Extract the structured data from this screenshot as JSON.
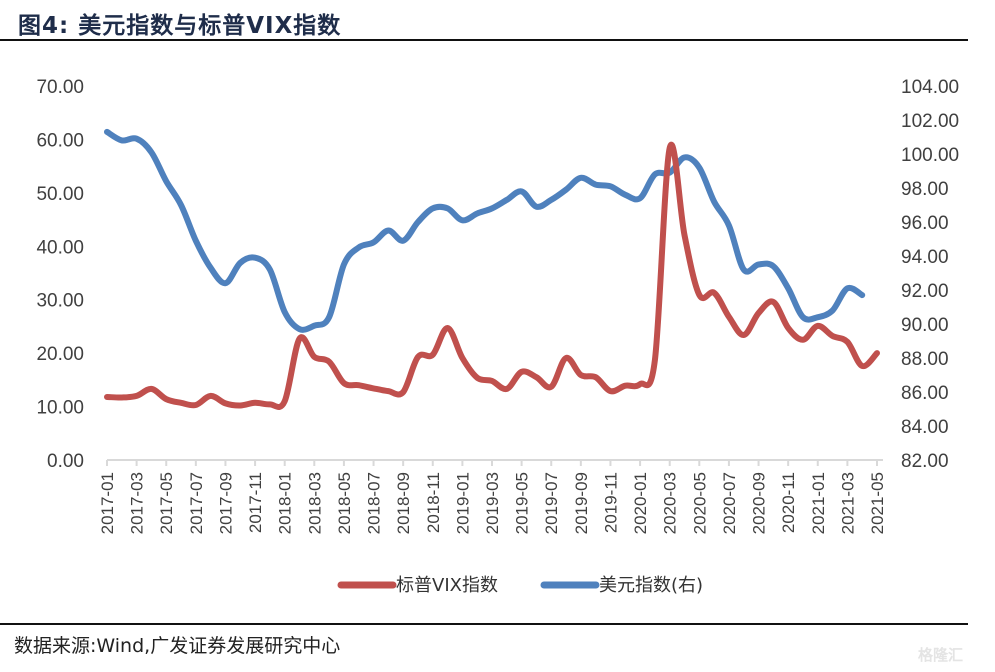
{
  "header": {
    "title": "图4:  美元指数与标普VIX指数"
  },
  "footer": {
    "source": "数据来源:Wind,广发证券发展研究中心",
    "watermark": "格隆汇"
  },
  "colors": {
    "vix": "#c0504d",
    "dxy": "#4f81bd",
    "axis": "#d9d9d9",
    "text": "#404040"
  },
  "chart_data": {
    "type": "line",
    "title": "美元指数与标普VIX指数",
    "xlabel": "",
    "ylabel": "",
    "grid": false,
    "legend_position": "bottom",
    "y_left": {
      "min": 0,
      "max": 70,
      "step": 10,
      "ticks": [
        "0.00",
        "10.00",
        "20.00",
        "30.00",
        "40.00",
        "50.00",
        "60.00",
        "70.00"
      ]
    },
    "y_right": {
      "min": 82,
      "max": 104,
      "step": 2,
      "ticks": [
        "82.00",
        "84.00",
        "86.00",
        "88.00",
        "90.00",
        "92.00",
        "94.00",
        "96.00",
        "98.00",
        "100.00",
        "102.00",
        "104.00"
      ]
    },
    "x_tick_labels": [
      "2017-01",
      "2017-03",
      "2017-05",
      "2017-07",
      "2017-09",
      "2017-11",
      "2018-01",
      "2018-03",
      "2018-05",
      "2018-07",
      "2018-09",
      "2018-11",
      "2019-01",
      "2019-03",
      "2019-05",
      "2019-07",
      "2019-09",
      "2019-11",
      "2020-01",
      "2020-03",
      "2020-05",
      "2020-07",
      "2020-09",
      "2020-11",
      "2021-01",
      "2021-03",
      "2021-05"
    ],
    "x": [
      "2017-01",
      "2017-02",
      "2017-03",
      "2017-04",
      "2017-05",
      "2017-06",
      "2017-07",
      "2017-08",
      "2017-09",
      "2017-10",
      "2017-11",
      "2017-12",
      "2018-01",
      "2018-02",
      "2018-03",
      "2018-04",
      "2018-05",
      "2018-06",
      "2018-07",
      "2018-08",
      "2018-09",
      "2018-10",
      "2018-11",
      "2018-12",
      "2019-01",
      "2019-02",
      "2019-03",
      "2019-04",
      "2019-05",
      "2019-06",
      "2019-07",
      "2019-08",
      "2019-09",
      "2019-10",
      "2019-11",
      "2019-12",
      "2020-01",
      "2020-02",
      "2020-03",
      "2020-04",
      "2020-05",
      "2020-06",
      "2020-07",
      "2020-08",
      "2020-09",
      "2020-10",
      "2020-11",
      "2020-12",
      "2021-01",
      "2021-02",
      "2021-03",
      "2021-04",
      "2021-05"
    ],
    "series": [
      {
        "name": "标普VIX指数",
        "axis": "left",
        "color": "#c0504d",
        "values": [
          11.8,
          11.7,
          12.0,
          13.3,
          11.4,
          10.7,
          10.3,
          12.0,
          10.6,
          10.2,
          10.7,
          10.4,
          11.0,
          22.7,
          19.3,
          18.4,
          14.4,
          14.0,
          13.4,
          12.9,
          12.7,
          19.3,
          19.7,
          24.7,
          19.1,
          15.4,
          14.8,
          13.3,
          16.5,
          15.5,
          13.7,
          19.1,
          15.9,
          15.5,
          12.9,
          13.9,
          14.2,
          18.7,
          58.4,
          42.1,
          30.9,
          31.3,
          26.8,
          23.4,
          27.5,
          29.6,
          24.7,
          22.5,
          25.1,
          23.2,
          22.1,
          17.6,
          20.0
        ]
      },
      {
        "name": "美元指数(右)",
        "axis": "right",
        "color": "#4f81bd",
        "values": [
          101.3,
          100.8,
          100.9,
          100.1,
          98.4,
          97.0,
          94.9,
          93.3,
          92.4,
          93.6,
          93.9,
          93.2,
          90.7,
          89.7,
          89.9,
          90.4,
          93.5,
          94.5,
          94.8,
          95.5,
          94.9,
          96.0,
          96.8,
          96.8,
          96.1,
          96.5,
          96.8,
          97.3,
          97.8,
          96.9,
          97.3,
          97.9,
          98.6,
          98.2,
          98.1,
          97.6,
          97.4,
          98.8,
          98.9,
          99.8,
          99.2,
          97.2,
          95.8,
          93.2,
          93.5,
          93.4,
          92.1,
          90.4,
          90.4,
          90.8,
          92.1,
          91.7,
          null
        ]
      }
    ],
    "legend": [
      "标普VIX指数",
      "美元指数(右)"
    ]
  }
}
